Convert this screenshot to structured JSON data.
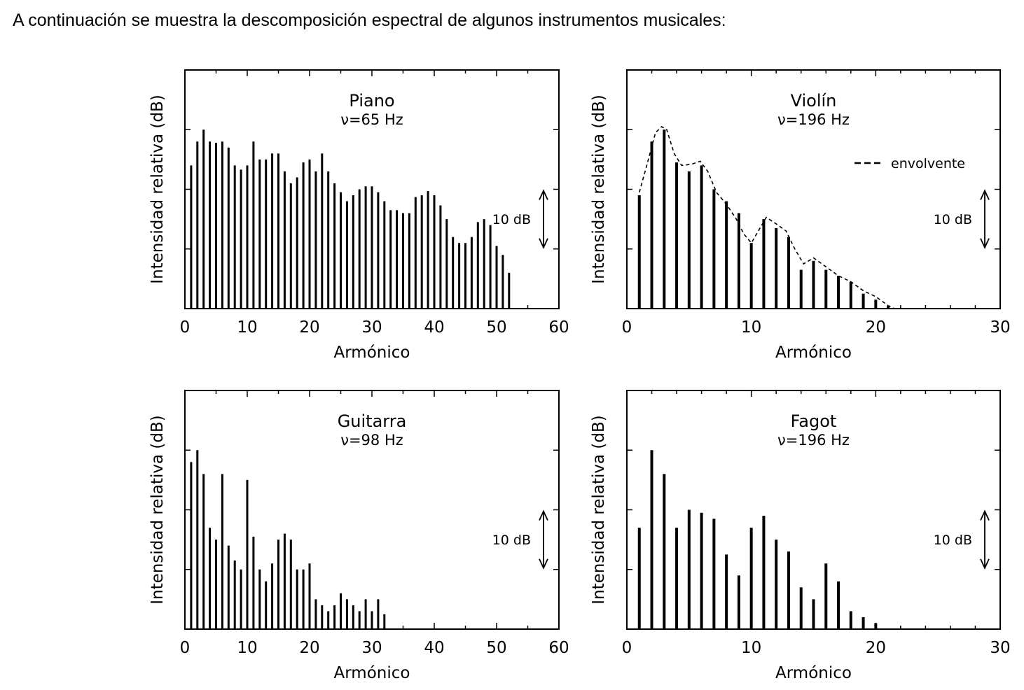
{
  "intro": "A continuación se muestra la descomposición espectral de algunos instrumentos musicales:",
  "chart_data": [
    {
      "type": "bar",
      "title": "Piano",
      "subtitle": "ν=65 Hz",
      "xlabel": "Armónico",
      "ylabel": "Intensidad relativa (dB)",
      "scale_label": "10 dB",
      "xlim": [
        0,
        60
      ],
      "ylim": [
        0,
        40
      ],
      "xticks": [
        "0",
        "10",
        "20",
        "30",
        "40",
        "50",
        "60"
      ],
      "x": [
        1,
        2,
        3,
        4,
        5,
        6,
        7,
        8,
        9,
        10,
        11,
        12,
        13,
        14,
        15,
        16,
        17,
        18,
        19,
        20,
        21,
        22,
        23,
        24,
        25,
        26,
        27,
        28,
        29,
        30,
        31,
        32,
        33,
        34,
        35,
        36,
        37,
        38,
        39,
        40,
        41,
        42,
        43,
        44,
        45,
        46,
        47,
        48,
        49,
        50,
        51,
        52
      ],
      "values": [
        24,
        28,
        30,
        28,
        27.8,
        28,
        27,
        24,
        23.3,
        24,
        28,
        25,
        25,
        26,
        26,
        23,
        21,
        22,
        24.5,
        25,
        23,
        26,
        23,
        21,
        19.5,
        18,
        19,
        20,
        20.5,
        20.5,
        19.5,
        18,
        16.5,
        16.5,
        16,
        16,
        18.7,
        19,
        19.7,
        19,
        17.3,
        15,
        12,
        11,
        11,
        12,
        14.5,
        15,
        14,
        10.5,
        9,
        6
      ]
    },
    {
      "type": "bar",
      "title": "Violín",
      "subtitle": "ν=196 Hz",
      "xlabel": "Armónico",
      "ylabel": "Intensidad relativa (dB)",
      "scale_label": "10 dB",
      "legend": "envolvente",
      "xlim": [
        0,
        30
      ],
      "ylim": [
        0,
        40
      ],
      "xticks": [
        "0",
        "10",
        "20",
        "30"
      ],
      "x": [
        1,
        2,
        3,
        4,
        5,
        6,
        7,
        8,
        9,
        10,
        11,
        12,
        13,
        14,
        15,
        16,
        17,
        18,
        19,
        20,
        21
      ],
      "values": [
        19,
        28,
        30,
        24.5,
        23,
        24,
        20,
        18,
        16,
        11,
        15,
        13.5,
        12,
        6.5,
        8,
        6.5,
        5.5,
        4.5,
        2.5,
        1.5,
        0.5
      ],
      "envelope": [
        [
          1,
          19.5
        ],
        [
          1.6,
          24
        ],
        [
          2.3,
          29.5
        ],
        [
          2.8,
          30.5
        ],
        [
          3.2,
          30
        ],
        [
          3.8,
          26
        ],
        [
          4.4,
          24
        ],
        [
          5.2,
          24.2
        ],
        [
          5.9,
          24.7
        ],
        [
          6.5,
          23
        ],
        [
          7.2,
          19.5
        ],
        [
          8,
          17.5
        ],
        [
          8.8,
          15
        ],
        [
          9.4,
          12.5
        ],
        [
          10,
          11
        ],
        [
          10.7,
          13.5
        ],
        [
          11.2,
          15.3
        ],
        [
          12,
          14.2
        ],
        [
          12.8,
          13
        ],
        [
          13.5,
          10
        ],
        [
          14.2,
          7.5
        ],
        [
          15,
          8.5
        ],
        [
          16,
          7
        ],
        [
          17,
          5.5
        ],
        [
          18,
          4.5
        ],
        [
          19,
          3
        ],
        [
          20,
          2
        ],
        [
          21,
          0.5
        ],
        [
          21.5,
          0
        ]
      ]
    },
    {
      "type": "bar",
      "title": "Guitarra",
      "subtitle": "ν=98 Hz",
      "xlabel": "Armónico",
      "ylabel": "Intensidad relativa (dB)",
      "scale_label": "10 dB",
      "xlim": [
        0,
        60
      ],
      "ylim": [
        0,
        40
      ],
      "xticks": [
        "0",
        "10",
        "20",
        "30",
        "40",
        "50",
        "60"
      ],
      "x": [
        1,
        2,
        3,
        4,
        5,
        6,
        7,
        8,
        9,
        10,
        11,
        12,
        13,
        14,
        15,
        16,
        17,
        18,
        19,
        20,
        21,
        22,
        23,
        24,
        25,
        26,
        27,
        28,
        29,
        30,
        31,
        32
      ],
      "values": [
        28,
        30,
        26,
        17,
        15,
        26,
        14,
        11.5,
        10,
        25,
        15.5,
        10,
        8,
        11,
        15,
        16,
        15,
        10,
        10,
        11,
        5,
        4,
        3,
        4,
        6,
        5,
        4,
        3,
        5,
        3,
        5,
        2.5
      ]
    },
    {
      "type": "bar",
      "title": "Fagot",
      "subtitle": "ν=196 Hz",
      "xlabel": "Armónico",
      "ylabel": "Intensidad relativa (dB)",
      "scale_label": "10 dB",
      "xlim": [
        0,
        30
      ],
      "ylim": [
        0,
        40
      ],
      "xticks": [
        "0",
        "10",
        "20",
        "30"
      ],
      "x": [
        1,
        2,
        3,
        4,
        5,
        6,
        7,
        8,
        9,
        10,
        11,
        12,
        13,
        14,
        15,
        16,
        17,
        18,
        19,
        20
      ],
      "values": [
        17,
        30,
        26,
        17,
        20,
        19.5,
        18.5,
        12.5,
        9,
        17,
        19,
        15,
        13,
        7,
        5,
        11,
        8,
        3,
        2,
        1
      ]
    }
  ]
}
